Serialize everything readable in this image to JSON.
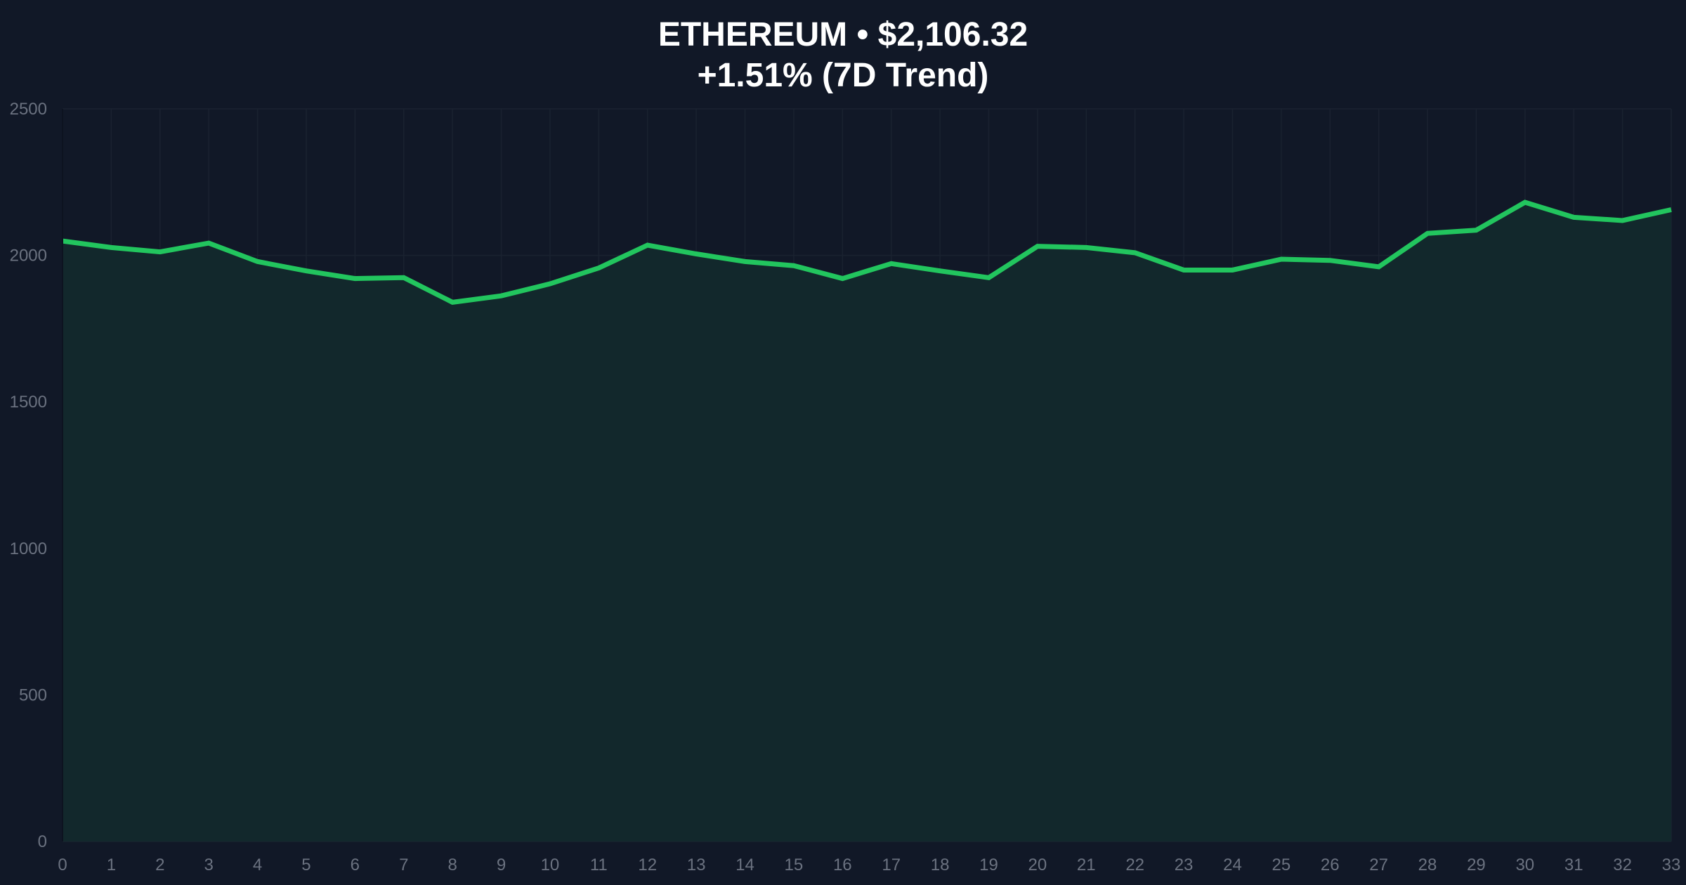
{
  "chart_data": {
    "type": "area",
    "title": "ETHEREUM • $2,106.32",
    "subtitle": "+1.51% (7D Trend)",
    "xlabel": "",
    "ylabel": "",
    "x": [
      0,
      1,
      2,
      3,
      4,
      5,
      6,
      7,
      8,
      9,
      10,
      11,
      12,
      13,
      14,
      15,
      16,
      17,
      18,
      19,
      20,
      21,
      22,
      23,
      24,
      25,
      26,
      27,
      28,
      29,
      30,
      31,
      32,
      33
    ],
    "values": [
      2049,
      2027,
      2012,
      2042,
      1979,
      1947,
      1921,
      1924,
      1840,
      1862,
      1903,
      1957,
      2035,
      2005,
      1979,
      1965,
      1921,
      1972,
      1947,
      1924,
      2031,
      2027,
      2009,
      1950,
      1950,
      1987,
      1983,
      1961,
      2075,
      2086,
      2181,
      2130,
      2119,
      2156
    ],
    "xlim": [
      0,
      33
    ],
    "ylim": [
      0,
      2500
    ],
    "yticks": [
      0,
      500,
      1000,
      1500,
      2000,
      2500
    ],
    "grid": true,
    "colors": {
      "background": "#111827",
      "line": "#22c55e",
      "fill": "#12282c",
      "grid": "#1a2230",
      "tick": "#6b7280"
    }
  }
}
